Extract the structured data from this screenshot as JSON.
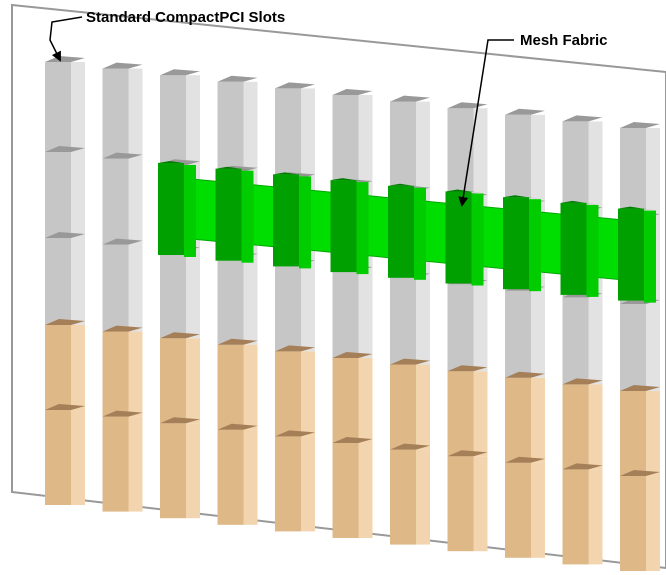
{
  "labels": {
    "slots": "Standard CompactPCI Slots",
    "fabric": "Mesh Fabric"
  }
}
